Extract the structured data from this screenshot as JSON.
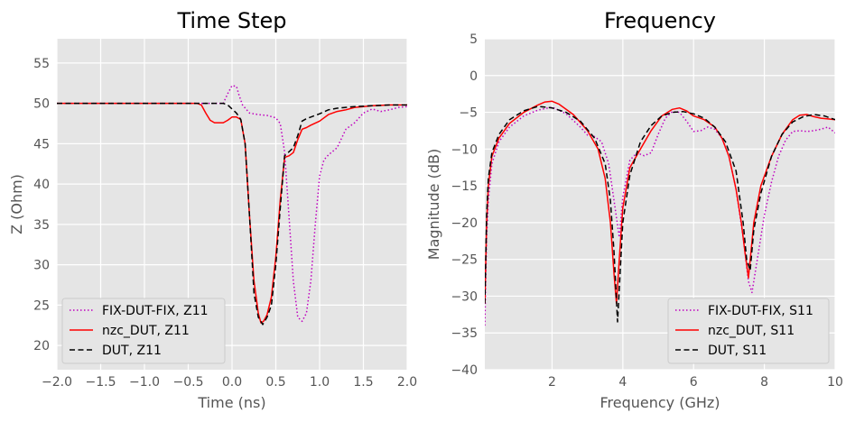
{
  "chart_data": [
    {
      "type": "line",
      "title": "Time Step",
      "xlabel": "Time (ns)",
      "ylabel": "Z (Ohm)",
      "xlim": [
        -2.0,
        2.0
      ],
      "ylim": [
        17,
        58
      ],
      "xticks": [
        -2.0,
        -1.5,
        -1.0,
        -0.5,
        0.0,
        0.5,
        1.0,
        1.5,
        2.0
      ],
      "xtick_labels": [
        "−2.0",
        "−1.5",
        "−1.0",
        "−0.5",
        "0.0",
        "0.5",
        "1.0",
        "1.5",
        "2.0"
      ],
      "yticks": [
        20,
        25,
        30,
        35,
        40,
        45,
        50,
        55
      ],
      "ytick_labels": [
        "20",
        "25",
        "30",
        "35",
        "40",
        "45",
        "50",
        "55"
      ],
      "grid": true,
      "legend_position": "bottom-left",
      "series": [
        {
          "name": "FIX-DUT-FIX, Z11",
          "color": "#bf00bf",
          "style": "dotted",
          "x": [
            -2.0,
            -0.1,
            -0.05,
            0.0,
            0.05,
            0.08,
            0.12,
            0.2,
            0.3,
            0.4,
            0.5,
            0.55,
            0.6,
            0.65,
            0.7,
            0.75,
            0.8,
            0.85,
            0.9,
            0.95,
            1.0,
            1.05,
            1.1,
            1.2,
            1.3,
            1.4,
            1.5,
            1.6,
            1.7,
            1.8,
            1.9,
            2.0
          ],
          "y": [
            50,
            50,
            51.2,
            52.2,
            52.1,
            51.0,
            49.8,
            48.8,
            48.6,
            48.5,
            48.2,
            47.5,
            44.0,
            36.0,
            28.0,
            23.5,
            23.0,
            24.0,
            28.0,
            35.0,
            41.0,
            43.0,
            43.6,
            44.5,
            46.8,
            47.6,
            48.8,
            49.3,
            49.0,
            49.2,
            49.5,
            49.6
          ]
        },
        {
          "name": "nzc_DUT, Z11",
          "color": "#ff0000",
          "style": "solid",
          "x": [
            -2.0,
            -0.4,
            -0.35,
            -0.3,
            -0.25,
            -0.2,
            -0.1,
            -0.05,
            0.0,
            0.05,
            0.1,
            0.15,
            0.2,
            0.25,
            0.3,
            0.33,
            0.36,
            0.4,
            0.45,
            0.5,
            0.55,
            0.6,
            0.65,
            0.7,
            0.75,
            0.8,
            0.85,
            0.9,
            1.0,
            1.1,
            1.2,
            1.3,
            1.4,
            1.5,
            1.6,
            1.8,
            2.0
          ],
          "y": [
            50,
            50,
            49.8,
            48.8,
            47.9,
            47.6,
            47.6,
            47.9,
            48.3,
            48.3,
            48.0,
            45.0,
            36.0,
            28.0,
            24.0,
            22.8,
            23.0,
            23.8,
            26.0,
            31.0,
            38.0,
            43.3,
            43.5,
            43.9,
            45.5,
            46.8,
            47.0,
            47.3,
            47.8,
            48.6,
            49.0,
            49.2,
            49.5,
            49.6,
            49.7,
            49.8,
            49.8
          ]
        },
        {
          "name": "DUT, Z11",
          "color": "#000000",
          "style": "dashed",
          "x": [
            -2.0,
            -0.1,
            -0.05,
            0.0,
            0.05,
            0.1,
            0.15,
            0.2,
            0.25,
            0.3,
            0.35,
            0.4,
            0.45,
            0.5,
            0.55,
            0.6,
            0.65,
            0.7,
            0.75,
            0.8,
            0.85,
            0.9,
            1.0,
            1.1,
            1.2,
            1.4,
            1.6,
            1.8,
            2.0
          ],
          "y": [
            50,
            50,
            49.8,
            49.3,
            48.8,
            48.0,
            45.0,
            36.0,
            26.5,
            23.5,
            22.6,
            23.5,
            25.0,
            30.0,
            37.0,
            43.5,
            44.0,
            44.5,
            46.0,
            47.8,
            48.1,
            48.3,
            48.7,
            49.2,
            49.4,
            49.6,
            49.7,
            49.8,
            49.8
          ]
        }
      ]
    },
    {
      "type": "line",
      "title": "Frequency",
      "xlabel": "Frequency (GHz)",
      "ylabel": "Magnitude (dB)",
      "xlim": [
        0.1,
        10
      ],
      "ylim": [
        -40,
        5
      ],
      "xticks": [
        2,
        4,
        6,
        8,
        10
      ],
      "xtick_labels": [
        "2",
        "4",
        "6",
        "8",
        "10"
      ],
      "yticks": [
        -40,
        -35,
        -30,
        -25,
        -20,
        -15,
        -10,
        -5,
        0,
        5
      ],
      "ytick_labels": [
        "−40",
        "−35",
        "−30",
        "−25",
        "−20",
        "−15",
        "−10",
        "−5",
        "0",
        "5"
      ],
      "grid": true,
      "legend_position": "bottom-right",
      "series": [
        {
          "name": "FIX-DUT-FIX, S11",
          "color": "#bf00bf",
          "style": "dotted",
          "x": [
            0.1,
            0.15,
            0.2,
            0.3,
            0.5,
            0.8,
            1.2,
            1.6,
            2.0,
            2.4,
            2.8,
            3.0,
            3.2,
            3.4,
            3.6,
            3.75,
            3.9,
            4.0,
            4.2,
            4.4,
            4.6,
            4.8,
            5.0,
            5.2,
            5.4,
            5.6,
            5.8,
            6.0,
            6.2,
            6.4,
            6.6,
            6.8,
            7.0,
            7.2,
            7.4,
            7.55,
            7.65,
            7.8,
            8.0,
            8.2,
            8.4,
            8.6,
            8.8,
            9.0,
            9.2,
            9.4,
            9.6,
            9.8,
            10.0
          ],
          "y": [
            -34,
            -22,
            -17,
            -12,
            -9,
            -7,
            -5.5,
            -4.7,
            -4.3,
            -5.2,
            -7.0,
            -8.1,
            -8.3,
            -9.0,
            -12.0,
            -17.0,
            -22.0,
            -16.5,
            -11.5,
            -10.5,
            -10.9,
            -10.5,
            -8.0,
            -5.8,
            -4.9,
            -5.0,
            -6.2,
            -7.6,
            -7.5,
            -7.0,
            -7.3,
            -8.5,
            -11.0,
            -15.5,
            -22.0,
            -28.0,
            -29.5,
            -25.0,
            -19.0,
            -14.5,
            -11.0,
            -8.8,
            -7.6,
            -7.5,
            -7.6,
            -7.5,
            -7.3,
            -7.0,
            -7.8
          ]
        },
        {
          "name": "nzc_DUT, S11",
          "color": "#ff0000",
          "style": "solid",
          "x": [
            0.1,
            0.15,
            0.2,
            0.3,
            0.5,
            0.8,
            1.2,
            1.6,
            1.8,
            2.0,
            2.2,
            2.6,
            3.0,
            3.3,
            3.5,
            3.65,
            3.75,
            3.82,
            3.9,
            4.0,
            4.2,
            4.5,
            4.8,
            5.1,
            5.4,
            5.6,
            5.8,
            6.0,
            6.3,
            6.6,
            6.8,
            7.0,
            7.2,
            7.35,
            7.45,
            7.55,
            7.7,
            7.9,
            8.2,
            8.5,
            8.8,
            9.0,
            9.2,
            9.4,
            9.6,
            9.8,
            10.0
          ],
          "y": [
            -31,
            -20,
            -15,
            -11,
            -8.5,
            -6.5,
            -5.0,
            -4.0,
            -3.6,
            -3.5,
            -3.9,
            -5.3,
            -7.5,
            -10.0,
            -14.0,
            -20.0,
            -27.0,
            -31.0,
            -25.0,
            -18.0,
            -12.5,
            -10.0,
            -7.5,
            -5.5,
            -4.6,
            -4.4,
            -4.8,
            -5.5,
            -6.0,
            -7.0,
            -8.5,
            -11.0,
            -15.5,
            -20.0,
            -24.0,
            -27.5,
            -20.0,
            -15.0,
            -11.0,
            -8.0,
            -6.0,
            -5.4,
            -5.3,
            -5.6,
            -5.8,
            -5.9,
            -6.0
          ]
        },
        {
          "name": "DUT, S11",
          "color": "#000000",
          "style": "dashed",
          "x": [
            0.1,
            0.15,
            0.2,
            0.3,
            0.5,
            0.8,
            1.2,
            1.6,
            2.0,
            2.4,
            2.8,
            3.2,
            3.5,
            3.65,
            3.75,
            3.85,
            3.9,
            4.0,
            4.2,
            4.5,
            4.8,
            5.1,
            5.4,
            5.7,
            6.0,
            6.3,
            6.6,
            6.9,
            7.2,
            7.4,
            7.5,
            7.6,
            7.7,
            7.9,
            8.2,
            8.5,
            8.8,
            9.1,
            9.4,
            9.7,
            10.0
          ],
          "y": [
            -31,
            -19,
            -14,
            -10.5,
            -8.0,
            -6.0,
            -4.8,
            -4.2,
            -4.4,
            -5.0,
            -6.2,
            -8.5,
            -12.0,
            -17.0,
            -24.0,
            -33.5,
            -29.0,
            -20.0,
            -13.5,
            -9.0,
            -6.8,
            -5.5,
            -5.0,
            -4.9,
            -5.2,
            -5.8,
            -7.0,
            -9.0,
            -13.0,
            -20.0,
            -25.0,
            -26.5,
            -21.0,
            -16.0,
            -11.0,
            -8.0,
            -6.3,
            -5.6,
            -5.3,
            -5.5,
            -6.0
          ]
        }
      ]
    }
  ]
}
